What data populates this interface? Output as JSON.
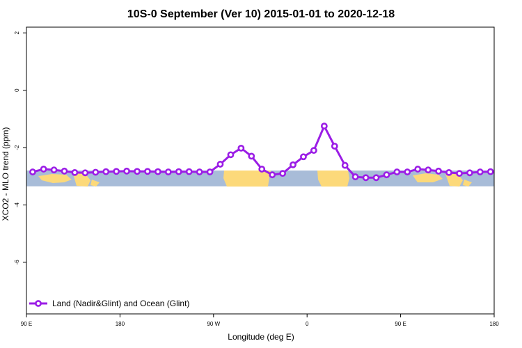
{
  "chart_data": {
    "type": "line",
    "title": "10S-0 September (Ver 10)   2015-01-01 to 2020-12-18",
    "xlabel": "Longitude (deg E)",
    "ylabel": "XCO2 - MLO trend (ppm)",
    "xlim": [
      0,
      1
    ],
    "ylim": [
      -7.8,
      2.2
    ],
    "x_ticks": [
      {
        "pos": 0.0,
        "label": "90 E"
      },
      {
        "pos": 0.2,
        "label": "180"
      },
      {
        "pos": 0.4,
        "label": "90 W"
      },
      {
        "pos": 0.6,
        "label": "0"
      },
      {
        "pos": 0.8,
        "label": "90 E"
      },
      {
        "pos": 1.0,
        "label": "180"
      }
    ],
    "y_ticks": [
      {
        "value": 2,
        "label": "2"
      },
      {
        "value": 0,
        "label": "0"
      },
      {
        "value": -2,
        "label": "-2"
      },
      {
        "value": -4,
        "label": "-4"
      },
      {
        "value": -6,
        "label": "-6"
      }
    ],
    "background_band": {
      "ymin": -3.35,
      "ymax": -2.8,
      "ocean_color": "#a8bcd8",
      "land_color": "#fcd97a"
    },
    "series": [
      {
        "name": "Land (Nadir&Glint) and Ocean (Glint)",
        "color": "#9b1de6",
        "x": [
          0.0133,
          0.0367,
          0.0589,
          0.0811,
          0.1033,
          0.1256,
          0.1478,
          0.17,
          0.1922,
          0.2144,
          0.2367,
          0.2589,
          0.2811,
          0.3033,
          0.3256,
          0.3478,
          0.37,
          0.3922,
          0.4144,
          0.4367,
          0.4589,
          0.4811,
          0.5033,
          0.5256,
          0.5478,
          0.57,
          0.5922,
          0.6144,
          0.6367,
          0.6589,
          0.6811,
          0.7033,
          0.7256,
          0.7478,
          0.77,
          0.7922,
          0.8144,
          0.8367,
          0.8589,
          0.8811,
          0.9033,
          0.9256,
          0.9478,
          0.97,
          0.9922
        ],
        "y": [
          -2.85,
          -2.75,
          -2.78,
          -2.82,
          -2.87,
          -2.88,
          -2.86,
          -2.84,
          -2.83,
          -2.82,
          -2.83,
          -2.83,
          -2.84,
          -2.85,
          -2.84,
          -2.84,
          -2.85,
          -2.85,
          -2.58,
          -2.25,
          -2.02,
          -2.3,
          -2.75,
          -2.95,
          -2.9,
          -2.6,
          -2.32,
          -2.1,
          -1.25,
          -1.95,
          -2.62,
          -3.02,
          -3.05,
          -3.05,
          -2.95,
          -2.85,
          -2.85,
          -2.75,
          -2.78,
          -2.82,
          -2.87,
          -2.9,
          -2.88,
          -2.85,
          -2.84
        ]
      }
    ],
    "legend": {
      "position": "bottom-left",
      "label": "Land (Nadir&Glint) and Ocean (Glint)"
    },
    "grid": false
  }
}
